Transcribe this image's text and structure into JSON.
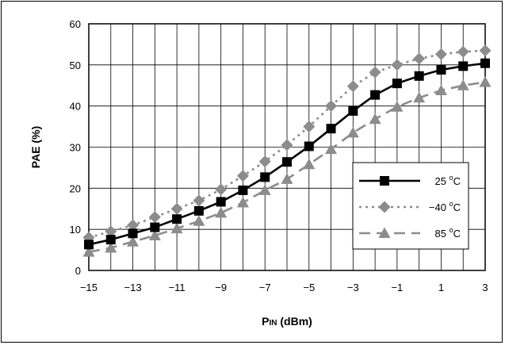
{
  "chart_data": {
    "type": "line",
    "title": "",
    "xlabel": "P_IN (dBm)",
    "xlabel_main": "P",
    "xlabel_sub": "IN",
    "xlabel_rest": " (dBm)",
    "ylabel": "PAE (%)",
    "xlim": [
      -15,
      3
    ],
    "ylim": [
      0,
      60
    ],
    "xticks": [
      -15,
      -13,
      -11,
      -9,
      -7,
      -5,
      -3,
      -1,
      1,
      3
    ],
    "xtick_labels": [
      "−15",
      "−13",
      "−11",
      "−9",
      "−7",
      "−5",
      "−3",
      "−1",
      "1",
      "3"
    ],
    "yticks": [
      0,
      10,
      20,
      30,
      40,
      50,
      60
    ],
    "ytick_labels": [
      "0",
      "10",
      "20",
      "30",
      "40",
      "50",
      "60"
    ],
    "grid": true,
    "legend_position": "right-center",
    "x": [
      -15,
      -14,
      -13,
      -12,
      -11,
      -10,
      -9,
      -8,
      -7,
      -6,
      -5,
      -4,
      -3,
      -2,
      -1,
      0,
      1,
      2,
      3
    ],
    "series": [
      {
        "name": "25 ºC",
        "legend_value": "25 ",
        "legend_unit": "C",
        "color": "#000000",
        "marker": "square",
        "line": "solid",
        "values": [
          6.3,
          7.5,
          9.0,
          10.5,
          12.5,
          14.5,
          16.7,
          19.5,
          22.7,
          26.4,
          30.2,
          34.5,
          38.8,
          42.7,
          45.5,
          47.3,
          48.8,
          49.7,
          50.4
        ]
      },
      {
        "name": "−40 ºC",
        "legend_value": "−40 ",
        "legend_unit": "C",
        "color": "#8c8c8c",
        "marker": "diamond",
        "line": "dotted",
        "values": [
          8.0,
          9.5,
          11.0,
          13.0,
          15.0,
          17.0,
          19.7,
          23.0,
          26.5,
          30.5,
          35.0,
          40.0,
          44.8,
          48.2,
          50.0,
          51.5,
          52.6,
          53.2,
          53.5
        ]
      },
      {
        "name": "85 ºC",
        "legend_value": "85 ",
        "legend_unit": "C",
        "color": "#8c8c8c",
        "marker": "triangle",
        "line": "dashed",
        "values": [
          4.5,
          5.5,
          7.0,
          8.5,
          10.2,
          12.0,
          14.0,
          16.5,
          19.5,
          22.2,
          25.8,
          29.5,
          33.5,
          36.8,
          39.8,
          42.0,
          43.8,
          45.0,
          45.8
        ]
      }
    ]
  },
  "colors": {
    "grid": "#000000",
    "frame": "#000000",
    "primary_series": "#000000",
    "secondary_series": "#8c8c8c"
  },
  "degree_symbol": "o"
}
